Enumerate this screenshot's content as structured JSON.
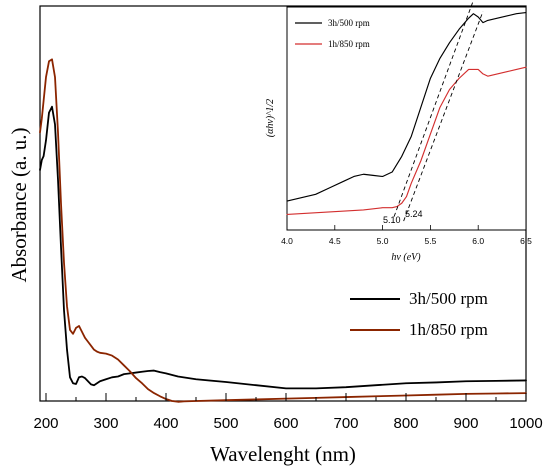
{
  "chart_data": [
    {
      "type": "line",
      "title": "",
      "xlabel": "Wavelenght (nm)",
      "ylabel": "Absorbance (a. u.)",
      "xlim": [
        190,
        1000
      ],
      "ylim": [
        0,
        1
      ],
      "grid": false,
      "legend_position": "right-middle",
      "xticks": [
        "200",
        "300",
        "400",
        "500",
        "600",
        "700",
        "800",
        "900",
        "1000"
      ],
      "series": [
        {
          "name": "3h/500 rpm",
          "color": "#000000",
          "x": [
            190,
            193,
            196,
            200,
            205,
            210,
            215,
            220,
            225,
            230,
            235,
            240,
            245,
            250,
            255,
            260,
            265,
            270,
            275,
            280,
            285,
            290,
            300,
            310,
            320,
            330,
            340,
            350,
            360,
            370,
            380,
            390,
            400,
            420,
            450,
            500,
            550,
            600,
            650,
            700,
            750,
            800,
            850,
            900,
            950,
            1000
          ],
          "y": [
            0.585,
            0.61,
            0.62,
            0.66,
            0.73,
            0.745,
            0.7,
            0.56,
            0.39,
            0.23,
            0.13,
            0.06,
            0.045,
            0.043,
            0.06,
            0.062,
            0.058,
            0.05,
            0.042,
            0.04,
            0.045,
            0.05,
            0.055,
            0.06,
            0.062,
            0.068,
            0.07,
            0.072,
            0.074,
            0.076,
            0.077,
            0.073,
            0.07,
            0.062,
            0.055,
            0.048,
            0.04,
            0.032,
            0.032,
            0.035,
            0.04,
            0.045,
            0.047,
            0.05,
            0.051,
            0.052
          ]
        },
        {
          "name": "1h/850 rpm",
          "color": "#8b2500",
          "x": [
            190,
            193,
            196,
            200,
            205,
            210,
            215,
            220,
            225,
            230,
            235,
            240,
            245,
            250,
            255,
            260,
            265,
            270,
            275,
            280,
            285,
            290,
            300,
            310,
            320,
            330,
            340,
            350,
            360,
            370,
            380,
            390,
            400,
            410,
            420,
            430,
            450,
            500,
            550,
            600,
            650,
            700,
            750,
            800,
            850,
            900,
            950,
            1000
          ],
          "y": [
            0.68,
            0.715,
            0.76,
            0.82,
            0.86,
            0.865,
            0.82,
            0.68,
            0.5,
            0.35,
            0.24,
            0.18,
            0.17,
            0.185,
            0.19,
            0.175,
            0.16,
            0.15,
            0.14,
            0.13,
            0.125,
            0.122,
            0.12,
            0.115,
            0.105,
            0.09,
            0.075,
            0.058,
            0.045,
            0.03,
            0.02,
            0.012,
            0.005,
            0.0,
            -0.002,
            -0.001,
            0.0,
            0.002,
            0.004,
            0.006,
            0.008,
            0.01,
            0.012,
            0.014,
            0.016,
            0.018,
            0.019,
            0.02
          ]
        }
      ]
    },
    {
      "type": "line",
      "title": "",
      "xlabel": "hν (eV)",
      "ylabel": "(αhν)^1/2",
      "xlim": [
        4.0,
        6.5
      ],
      "ylim": [
        0,
        1
      ],
      "grid": false,
      "legend_position": "top-left",
      "xticks": [
        "4.0",
        "4.5",
        "5.0",
        "5.5",
        "6.0",
        "6.5"
      ],
      "series": [
        {
          "name": "3h/500 rpm",
          "color": "#000000",
          "x": [
            4.0,
            4.15,
            4.3,
            4.45,
            4.6,
            4.7,
            4.8,
            4.9,
            5.0,
            5.1,
            5.2,
            5.3,
            5.4,
            5.5,
            5.6,
            5.7,
            5.8,
            5.9,
            5.95,
            6.0,
            6.05,
            6.1,
            6.2,
            6.3,
            6.4,
            6.5
          ],
          "y": [
            0.13,
            0.145,
            0.16,
            0.19,
            0.22,
            0.24,
            0.25,
            0.245,
            0.24,
            0.26,
            0.33,
            0.42,
            0.55,
            0.68,
            0.77,
            0.84,
            0.9,
            0.95,
            0.97,
            0.955,
            0.93,
            0.94,
            0.95,
            0.96,
            0.97,
            0.975
          ]
        },
        {
          "name": "1h/850 rpm",
          "color": "#d32f2f",
          "x": [
            4.0,
            4.2,
            4.4,
            4.6,
            4.8,
            5.0,
            5.1,
            5.15,
            5.2,
            5.25,
            5.3,
            5.4,
            5.5,
            5.6,
            5.7,
            5.8,
            5.9,
            6.0,
            6.05,
            6.1,
            6.2,
            6.3,
            6.4,
            6.5
          ],
          "y": [
            0.07,
            0.075,
            0.08,
            0.085,
            0.09,
            0.1,
            0.1,
            0.105,
            0.12,
            0.15,
            0.21,
            0.31,
            0.43,
            0.55,
            0.63,
            0.68,
            0.72,
            0.72,
            0.7,
            0.69,
            0.7,
            0.71,
            0.72,
            0.73
          ]
        }
      ],
      "annotations": [
        {
          "text": "5.10",
          "x": 5.1
        },
        {
          "text": "5.24",
          "x": 5.24
        }
      ],
      "tangents": [
        {
          "x": [
            5.12,
            5.95
          ],
          "y": [
            0.06,
            1.03
          ]
        },
        {
          "x": [
            5.22,
            6.05
          ],
          "y": [
            0.04,
            0.98
          ]
        }
      ]
    }
  ]
}
